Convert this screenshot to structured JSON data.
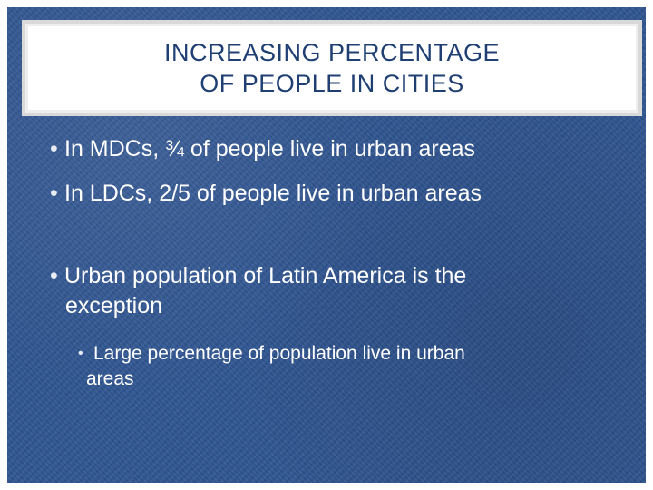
{
  "slide": {
    "title_lines": [
      "INCREASING PERCENTAGE",
      "OF PEOPLE IN CITIES"
    ],
    "bullets": [
      {
        "marker": "•",
        "text": "In MDCs, ¾ of people live in urban areas"
      },
      {
        "marker": "•",
        "text": "In LDCs, 2/5 of people live in urban areas"
      },
      {
        "marker": "•",
        "lines": [
          "Urban population of Latin America is the",
          "exception"
        ]
      },
      {
        "marker": "•",
        "lines": [
          "Large percentage of population live in urban",
          "areas"
        ]
      }
    ],
    "colors": {
      "background": "#2f5591",
      "title_box": "#ffffff",
      "title_text": "#1f3f73",
      "body_text": "#ffffff"
    }
  }
}
